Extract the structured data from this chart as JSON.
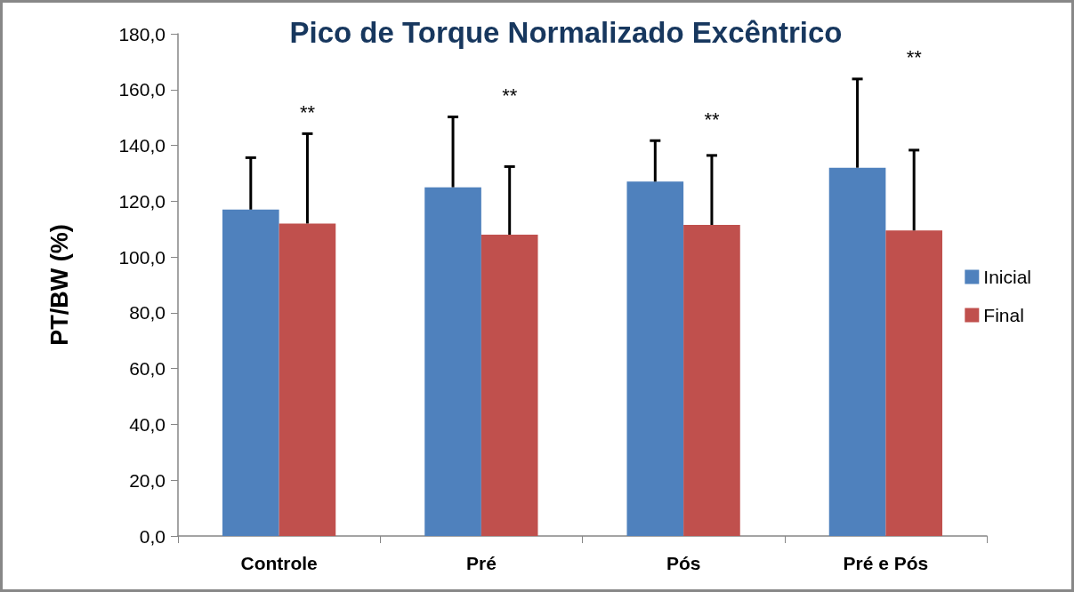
{
  "chart_data": {
    "type": "bar",
    "title": "Pico de Torque Normalizado Excêntrico",
    "ylabel": "PT/BW (%)",
    "categories": [
      "Controle",
      "Pré",
      "Pós",
      "Pré e Pós"
    ],
    "series": [
      {
        "name": "Inicial",
        "color": "#4f81bd",
        "values": [
          117,
          125,
          127,
          132
        ],
        "errors": [
          [
            117,
            135.6
          ],
          [
            125,
            150.2
          ],
          [
            127,
            141.7
          ],
          [
            132,
            163.8
          ]
        ]
      },
      {
        "name": "Final",
        "color": "#c0504d",
        "values": [
          112,
          108,
          111.5,
          109.5
        ],
        "errors": [
          [
            112,
            144.2
          ],
          [
            108,
            132.4
          ],
          [
            111.5,
            136.4
          ],
          [
            109.5,
            138.3
          ]
        ]
      }
    ],
    "ylim": [
      0,
      180
    ],
    "yticks": [
      {
        "value": 0,
        "label": "0,0"
      },
      {
        "value": 20,
        "label": "20,0"
      },
      {
        "value": 40,
        "label": "40,0"
      },
      {
        "value": 60,
        "label": "60,0"
      },
      {
        "value": 80,
        "label": "80,0"
      },
      {
        "value": 100,
        "label": "100,0"
      },
      {
        "value": 120,
        "label": "120,0"
      },
      {
        "value": 140,
        "label": "140,0"
      },
      {
        "value": 160,
        "label": "160,0"
      },
      {
        "value": 180,
        "label": "180,0"
      }
    ],
    "annotations": [
      "**",
      "**",
      "**",
      "**"
    ],
    "grid": false,
    "legend": "right"
  }
}
